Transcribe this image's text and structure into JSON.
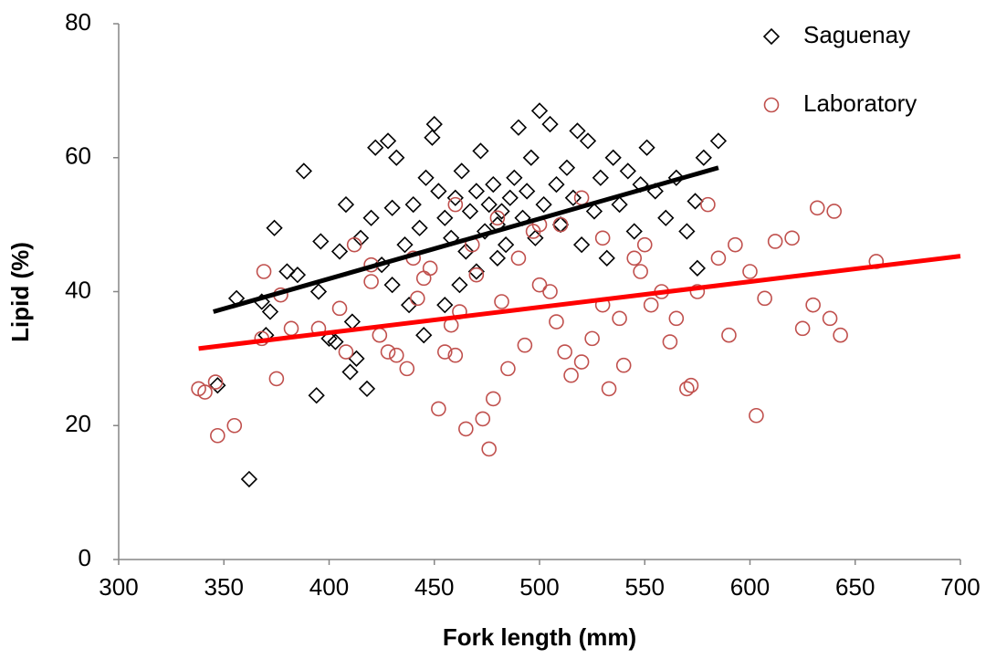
{
  "chart_data": {
    "type": "scatter",
    "x_label": "Fork length (mm)",
    "y_label": "Lipid (%)",
    "xlim": [
      300,
      700
    ],
    "xticks": [
      300,
      350,
      400,
      450,
      500,
      550,
      600,
      650,
      700
    ],
    "ylim": [
      0,
      80
    ],
    "yticks": [
      0,
      20,
      40,
      60,
      80
    ],
    "legend": "top-right",
    "series": [
      {
        "name": "Saguenay",
        "color": "#000000",
        "marker": "diamond",
        "x": [
          362,
          394,
          418,
          410,
          413,
          347,
          370,
          400,
          403,
          411,
          356,
          368,
          372,
          380,
          385,
          374,
          388,
          396,
          395,
          405,
          408,
          415,
          420,
          422,
          425,
          428,
          430,
          432,
          436,
          440,
          443,
          446,
          449,
          450,
          452,
          455,
          458,
          460,
          463,
          465,
          467,
          470,
          472,
          474,
          476,
          478,
          480,
          482,
          484,
          486,
          488,
          490,
          492,
          494,
          496,
          498,
          500,
          502,
          505,
          508,
          510,
          513,
          516,
          518,
          520,
          523,
          526,
          529,
          532,
          535,
          538,
          542,
          545,
          548,
          551,
          555,
          560,
          565,
          570,
          574,
          578,
          585,
          575,
          445,
          455,
          462,
          470,
          480,
          430,
          438
        ],
        "values": [
          12,
          24.5,
          25.5,
          28,
          30,
          26,
          33.5,
          33,
          32.5,
          35.5,
          39,
          38.5,
          37,
          43,
          42.5,
          49.5,
          58,
          47.5,
          40,
          46,
          53,
          48,
          51,
          61.5,
          44,
          62.5,
          52.5,
          60,
          47,
          53,
          49.5,
          57,
          63,
          65,
          55,
          51,
          48,
          54,
          58,
          46,
          52,
          55,
          61,
          49,
          53,
          56,
          50,
          52,
          47,
          54,
          57,
          64.5,
          51,
          55,
          60,
          48,
          67,
          53,
          65,
          56,
          50,
          58.5,
          54,
          64,
          47,
          62.5,
          52,
          57,
          45,
          60,
          53,
          58,
          49,
          56,
          61.5,
          55,
          51,
          57,
          49,
          53.5,
          60,
          62.5,
          43.5,
          33.5,
          38,
          41,
          43,
          45,
          41,
          38
        ]
      },
      {
        "name": "Laboratory",
        "color": "#c0504d",
        "marker": "circle",
        "x": [
          338,
          341,
          347,
          346,
          355,
          368,
          369,
          375,
          377,
          382,
          395,
          405,
          408,
          412,
          420,
          424,
          428,
          432,
          437,
          442,
          445,
          448,
          452,
          455,
          458,
          460,
          462,
          465,
          468,
          470,
          473,
          476,
          478,
          482,
          485,
          490,
          493,
          497,
          500,
          505,
          508,
          512,
          515,
          520,
          525,
          530,
          533,
          538,
          540,
          545,
          548,
          550,
          553,
          558,
          562,
          565,
          570,
          572,
          575,
          580,
          585,
          590,
          593,
          600,
          603,
          607,
          612,
          620,
          625,
          630,
          632,
          638,
          640,
          643,
          660,
          480,
          510,
          520,
          530,
          460,
          440,
          500,
          420
        ],
        "values": [
          25.5,
          25,
          18.5,
          26.5,
          20,
          33,
          43,
          27,
          39.5,
          34.5,
          34.5,
          37.5,
          31,
          47,
          41.5,
          33.5,
          31,
          30.5,
          28.5,
          39,
          42,
          43.5,
          22.5,
          31,
          35,
          30.5,
          37,
          19.5,
          47,
          42.5,
          21,
          16.5,
          24,
          38.5,
          28.5,
          45,
          32,
          49,
          50,
          40,
          35.5,
          31,
          27.5,
          29.5,
          33,
          38,
          25.5,
          36,
          29,
          45,
          43,
          47,
          38,
          40,
          32.5,
          36,
          25.5,
          26,
          40,
          53,
          45,
          33.5,
          47,
          43,
          21.5,
          39,
          47.5,
          48,
          34.5,
          38,
          52.5,
          36,
          52,
          33.5,
          44.5,
          51,
          50,
          54,
          48,
          53,
          45,
          41,
          44
        ]
      }
    ],
    "trendlines": [
      {
        "color": "#000000",
        "x": [
          345,
          585
        ],
        "values": [
          37,
          58.5
        ]
      },
      {
        "color": "#ff0000",
        "x": [
          338,
          700
        ],
        "values": [
          31.5,
          45.3
        ]
      }
    ]
  }
}
